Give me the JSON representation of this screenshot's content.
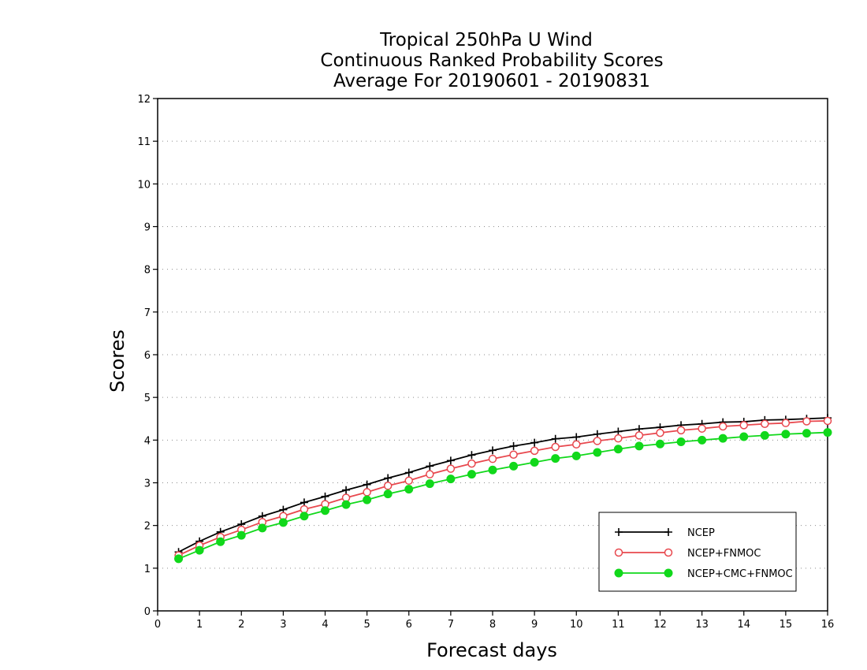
{
  "chart_data": {
    "type": "line",
    "title_lines": [
      "Tropical 250hPa U Wind",
      "Continuous Ranked Probability Scores",
      "Average For 20190601 - 20190831"
    ],
    "xlabel": "Forecast days",
    "ylabel": "Scores",
    "xlim": [
      0,
      16
    ],
    "ylim": [
      0,
      12
    ],
    "xticks": [
      0,
      1,
      2,
      3,
      4,
      5,
      6,
      7,
      8,
      9,
      10,
      11,
      12,
      13,
      14,
      15,
      16
    ],
    "yticks": [
      0,
      1,
      2,
      3,
      4,
      5,
      6,
      7,
      8,
      9,
      10,
      11,
      12
    ],
    "grid": "horizontal-dotted",
    "legend_position": "bottom-right",
    "x": [
      0.5,
      1,
      1.5,
      2,
      2.5,
      3,
      3.5,
      4,
      4.5,
      5,
      5.5,
      6,
      6.5,
      7,
      7.5,
      8,
      8.5,
      9,
      9.5,
      10,
      10.5,
      11,
      11.5,
      12,
      12.5,
      13,
      13.5,
      14,
      14.5,
      15,
      15.5,
      16
    ],
    "series": [
      {
        "name": "NCEP",
        "color": "#000000",
        "marker": "plus",
        "values": [
          1.38,
          1.63,
          1.85,
          2.03,
          2.22,
          2.37,
          2.54,
          2.68,
          2.83,
          2.96,
          3.11,
          3.24,
          3.39,
          3.52,
          3.65,
          3.76,
          3.86,
          3.94,
          4.03,
          4.07,
          4.14,
          4.2,
          4.26,
          4.3,
          4.35,
          4.38,
          4.42,
          4.43,
          4.47,
          4.48,
          4.5,
          4.52
        ]
      },
      {
        "name": "NCEP+FNMOC",
        "color": "#e8484e",
        "marker": "open-circle",
        "values": [
          1.3,
          1.53,
          1.73,
          1.9,
          2.08,
          2.22,
          2.38,
          2.5,
          2.65,
          2.78,
          2.93,
          3.05,
          3.2,
          3.33,
          3.45,
          3.56,
          3.66,
          3.75,
          3.84,
          3.9,
          3.98,
          4.04,
          4.11,
          4.17,
          4.23,
          4.27,
          4.32,
          4.35,
          4.38,
          4.4,
          4.44,
          4.45
        ]
      },
      {
        "name": "NCEP+CMC+FNMOC",
        "color": "#11d81b",
        "marker": "filled-circle",
        "values": [
          1.22,
          1.42,
          1.62,
          1.77,
          1.94,
          2.07,
          2.22,
          2.35,
          2.49,
          2.6,
          2.74,
          2.85,
          2.98,
          3.09,
          3.2,
          3.3,
          3.39,
          3.48,
          3.57,
          3.63,
          3.71,
          3.79,
          3.86,
          3.91,
          3.96,
          4.0,
          4.04,
          4.08,
          4.11,
          4.14,
          4.16,
          4.18
        ]
      }
    ]
  }
}
